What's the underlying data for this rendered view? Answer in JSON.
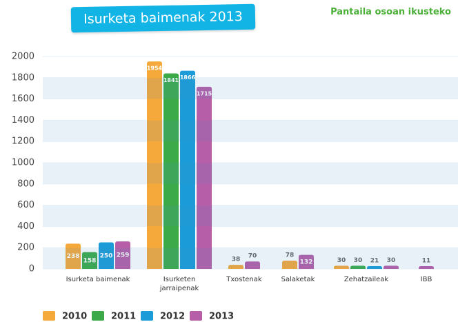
{
  "chart_data": {
    "type": "bar",
    "title": "Isurketa baimenak 2013",
    "link_text": "Pantaila osoan ikusteko",
    "categories": [
      "Isurketa baimenak",
      "Isurketen jarraipenak",
      "Txostenak",
      "Salaketak",
      "Zehatzaileak",
      "IBB"
    ],
    "series": [
      {
        "name": "2010",
        "color": "#f5a93b",
        "values": [
          238,
          1954,
          38,
          78,
          30,
          null
        ]
      },
      {
        "name": "2011",
        "color": "#3daa4a",
        "values": [
          158,
          1841,
          null,
          null,
          30,
          null
        ]
      },
      {
        "name": "2012",
        "color": "#1b9cd8",
        "values": [
          250,
          1866,
          null,
          null,
          21,
          null
        ]
      },
      {
        "name": "2013",
        "color": "#b65fa8",
        "values": [
          259,
          1715,
          70,
          132,
          30,
          11
        ]
      }
    ],
    "ylim": [
      0,
      2000
    ],
    "yticks": [
      0,
      200,
      400,
      600,
      800,
      1000,
      1200,
      1400,
      1600,
      1800,
      2000
    ],
    "grid": true,
    "legend": "bottom"
  }
}
